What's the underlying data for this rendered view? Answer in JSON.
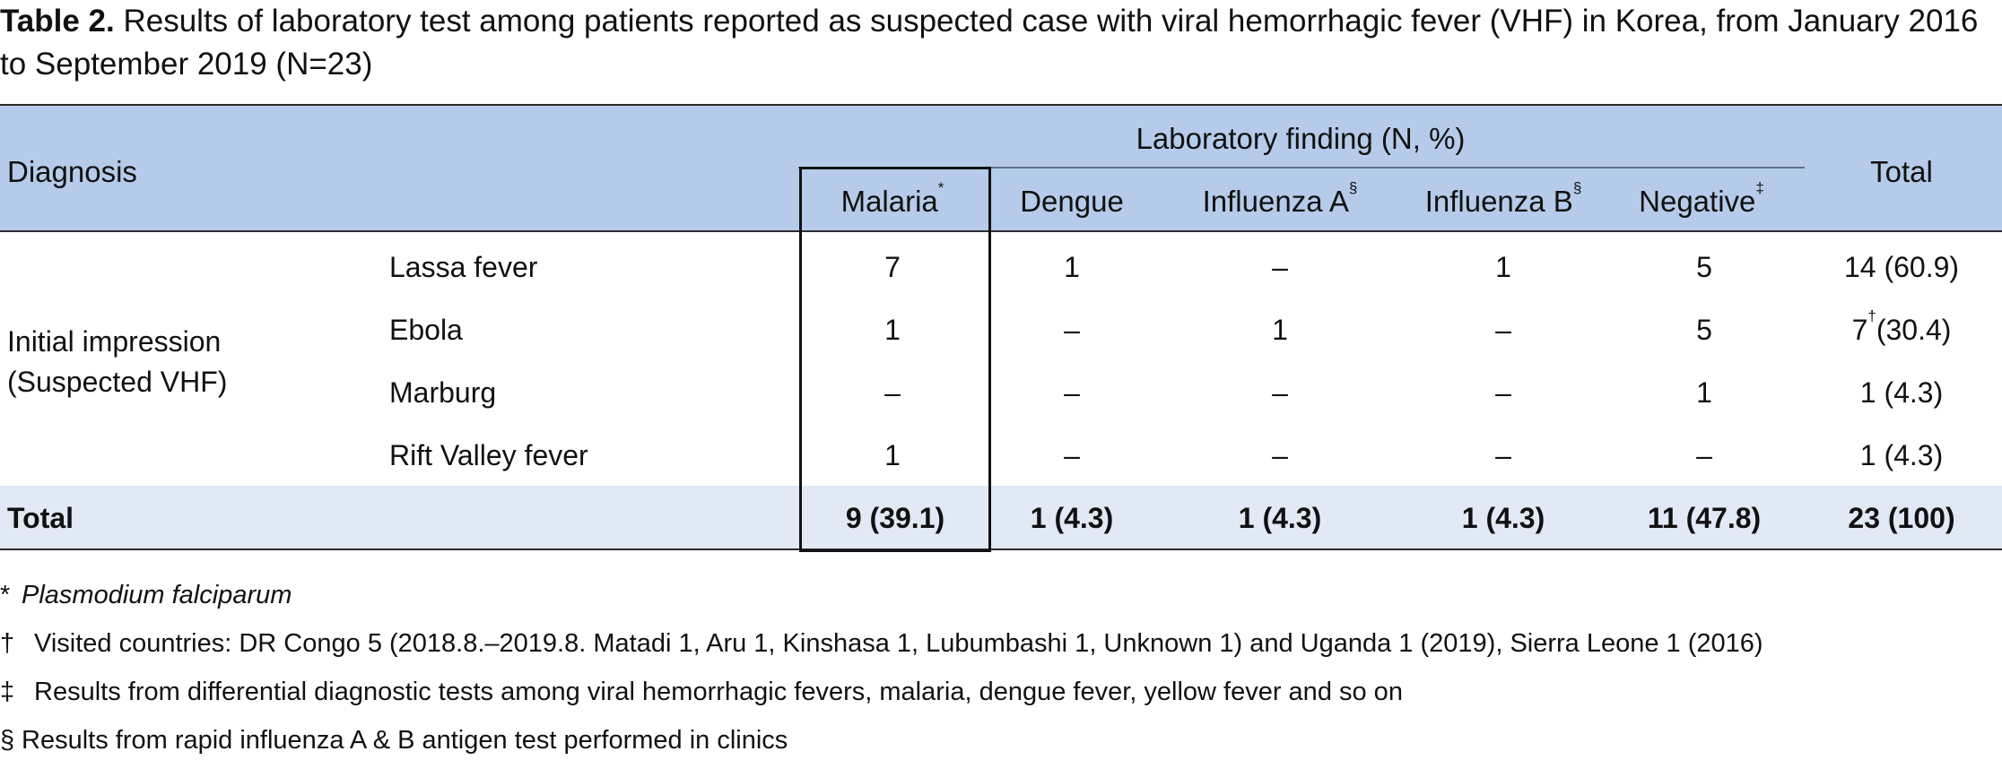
{
  "caption": {
    "label": "Table 2.",
    "text": " Results of laboratory test among patients reported as suspected case with viral hemorrhagic fever (VHF) in Korea, from January 2016 to September 2019 (N=23)"
  },
  "table": {
    "header": {
      "diagnosis": "Diagnosis",
      "group": "Laboratory finding (N, %)",
      "total": "Total",
      "columns": [
        {
          "label": "Malaria",
          "mark": "*"
        },
        {
          "label": "Dengue",
          "mark": ""
        },
        {
          "label": "Influenza A",
          "mark": "§"
        },
        {
          "label": "Influenza B",
          "mark": "§"
        },
        {
          "label": "Negative",
          "mark": "‡"
        }
      ]
    },
    "row_group": {
      "line1": "Initial impression",
      "line2": "(Suspected VHF)"
    },
    "rows": [
      {
        "name": "Lassa fever",
        "values": [
          "7",
          "1",
          "–",
          "1",
          "5"
        ],
        "total": "14 (60.9)",
        "total_mark": ""
      },
      {
        "name": "Ebola",
        "values": [
          "1",
          "–",
          "1",
          "–",
          "5"
        ],
        "total_prefix": "7",
        "total_mark": "†",
        "total": "(30.4)"
      },
      {
        "name": "Marburg",
        "values": [
          "–",
          "–",
          "–",
          "–",
          "1"
        ],
        "total": "1 (4.3)",
        "total_mark": ""
      },
      {
        "name": "Rift Valley fever",
        "values": [
          "1",
          "–",
          "–",
          "–",
          "–"
        ],
        "total": "1 (4.3)",
        "total_mark": ""
      }
    ],
    "total_row": {
      "label": "Total",
      "values": [
        "9 (39.1)",
        "1 (4.3)",
        "1 (4.3)",
        "1 (4.3)",
        "11 (47.8)"
      ],
      "total": "23 (100)"
    }
  },
  "footnotes": [
    {
      "symbol": "*",
      "text": "Plasmodium falciparum"
    },
    {
      "symbol": "†",
      "text": "Visited countries: DR Congo 5 (2018.8.–2019.8. Matadi 1, Aru 1, Kinshasa 1, Lubumbashi 1, Unknown 1) and Uganda 1 (2019), Sierra Leone 1 (2016)"
    },
    {
      "symbol": "‡",
      "text": "Results from differential diagnostic tests among viral hemorrhagic fevers, malaria, dengue fever, yellow fever and so on"
    },
    {
      "symbol": "§",
      "text": "Results from rapid influenza A & B antigen test performed in clinics"
    }
  ],
  "colors": {
    "header_bg": "#b5cbe9",
    "total_row_bg": "#e1e9f5"
  }
}
